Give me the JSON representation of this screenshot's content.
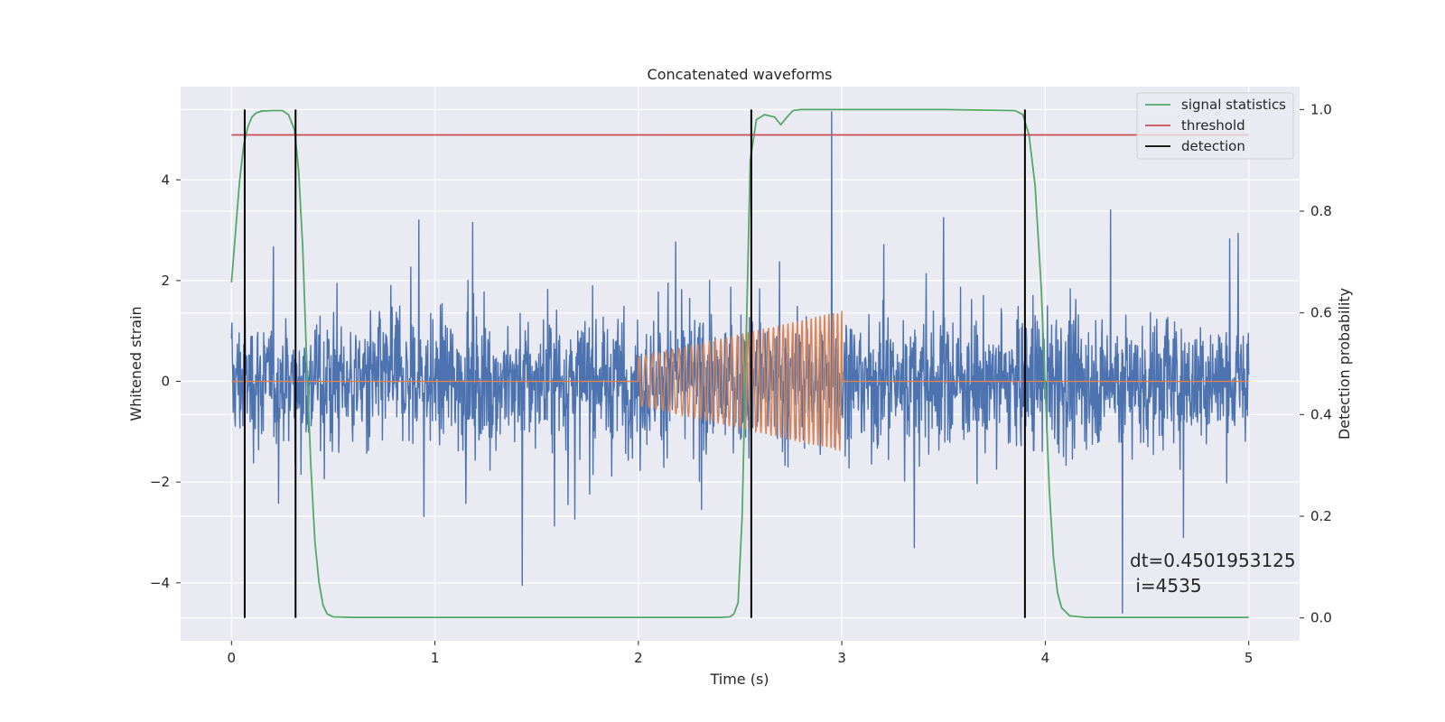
{
  "chart_data": {
    "type": "line",
    "title": "Concatenated waveforms",
    "xlabel": "Time (s)",
    "ylabel_left": "Whitened strain",
    "ylabel_right": "Detection probability",
    "xlim": [
      -0.25,
      5.25
    ],
    "ylim_left": [
      -5.15,
      5.85
    ],
    "ylim_right": [
      -0.045,
      1.045
    ],
    "x_ticks": [
      0,
      1,
      2,
      3,
      4,
      5
    ],
    "y_left_ticks": [
      -4,
      -2,
      0,
      2,
      4
    ],
    "y_left_tick_labels": [
      "−4",
      "−2",
      "0",
      "2",
      "4"
    ],
    "y_right_ticks": [
      0.0,
      0.2,
      0.4,
      0.6,
      0.8,
      1.0
    ],
    "y_right_tick_labels": [
      "0.0",
      "0.2",
      "0.4",
      "0.6",
      "0.8",
      "1.0"
    ],
    "grid": true,
    "legend_position": "top-right",
    "colors": {
      "background": "#eaeaf2",
      "grid": "#ffffff",
      "strain": "#4c72b0",
      "injection": "#dd8452",
      "signal_statistics": "#55a868",
      "threshold": "#c44e52",
      "detection": "#000000"
    },
    "series": [
      {
        "name": "",
        "axis": "left",
        "description_kind": "whitened strain noise",
        "x_range": [
          0,
          5
        ],
        "typical_abs_amplitude": 0.9,
        "extreme_peaks": [
          [
            0.92,
            3.2
          ],
          [
            1.43,
            -4.05
          ],
          [
            2.95,
            5.35
          ],
          [
            3.5,
            3.25
          ],
          [
            4.38,
            -4.6
          ],
          [
            4.32,
            3.4
          ],
          [
            4.68,
            -3.1
          ]
        ]
      },
      {
        "name": "",
        "axis": "left",
        "description_kind": "injected chirp",
        "x_range": [
          0,
          5
        ],
        "chirp_start": 2.0,
        "chirp_end": 3.0,
        "amplitude_start": 0.48,
        "amplitude_end": 1.4,
        "cycles_start": 28,
        "cycles_end": 48
      },
      {
        "name": "signal statistics",
        "axis": "right",
        "x": [
          0,
          0.02,
          0.04,
          0.06,
          0.08,
          0.1,
          0.12,
          0.15,
          0.2,
          0.25,
          0.28,
          0.31,
          0.33,
          0.35,
          0.37,
          0.39,
          0.41,
          0.43,
          0.45,
          0.47,
          0.5,
          0.6,
          1.0,
          2.0,
          2.4,
          2.45,
          2.47,
          2.49,
          2.51,
          2.53,
          2.55,
          2.58,
          2.62,
          2.67,
          2.7,
          2.73,
          2.76,
          2.8,
          3.0,
          3.5,
          3.85,
          3.89,
          3.92,
          3.95,
          3.98,
          4.0,
          4.02,
          4.04,
          4.06,
          4.08,
          4.12,
          4.2,
          5.0
        ],
        "y": [
          0.66,
          0.76,
          0.86,
          0.93,
          0.965,
          0.985,
          0.993,
          0.997,
          0.998,
          0.998,
          0.99,
          0.96,
          0.88,
          0.73,
          0.5,
          0.3,
          0.15,
          0.07,
          0.025,
          0.008,
          0.002,
          0.001,
          0.001,
          0.001,
          0.001,
          0.002,
          0.008,
          0.03,
          0.2,
          0.55,
          0.9,
          0.98,
          0.99,
          0.985,
          0.97,
          0.985,
          0.998,
          1.0,
          1.0,
          1.0,
          0.998,
          0.99,
          0.95,
          0.85,
          0.65,
          0.45,
          0.25,
          0.12,
          0.05,
          0.02,
          0.004,
          0.001,
          0.001
        ]
      },
      {
        "name": "threshold",
        "axis": "right",
        "x": [
          0,
          5
        ],
        "y": [
          0.95,
          0.95
        ]
      },
      {
        "name": "detection",
        "axis": "right",
        "type": "vlines",
        "x": [
          0.065,
          0.315,
          2.555,
          3.9
        ],
        "y_range": [
          0.0,
          1.0
        ]
      }
    ],
    "annotations": [
      "dt=0.4501953125",
      " i=4535"
    ]
  }
}
